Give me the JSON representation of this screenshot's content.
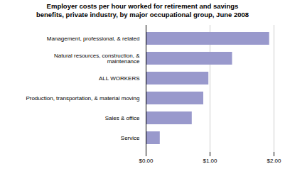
{
  "chart_data": {
    "type": "bar",
    "orientation": "horizontal",
    "title": "Employer costs per hour worked for retirement and savings\nbenefits, private industry, by major occupational group, June 2008",
    "categories": [
      "Service",
      "Sales & office",
      "Production, transportation, & material moving",
      "ALL WORKERS",
      "Natural resources, construction, &\nmaintenance",
      "Management, professional, & related"
    ],
    "values": [
      0.22,
      0.72,
      0.9,
      0.98,
      1.35,
      1.93
    ],
    "color": "#9999cc",
    "xlim": [
      0,
      2.0
    ],
    "xticks": [
      {
        "value": 0.0,
        "label": "$0.00"
      },
      {
        "value": 1.0,
        "label": "$1.00"
      },
      {
        "value": 2.0,
        "label": "$2.00"
      }
    ],
    "grid": true
  }
}
